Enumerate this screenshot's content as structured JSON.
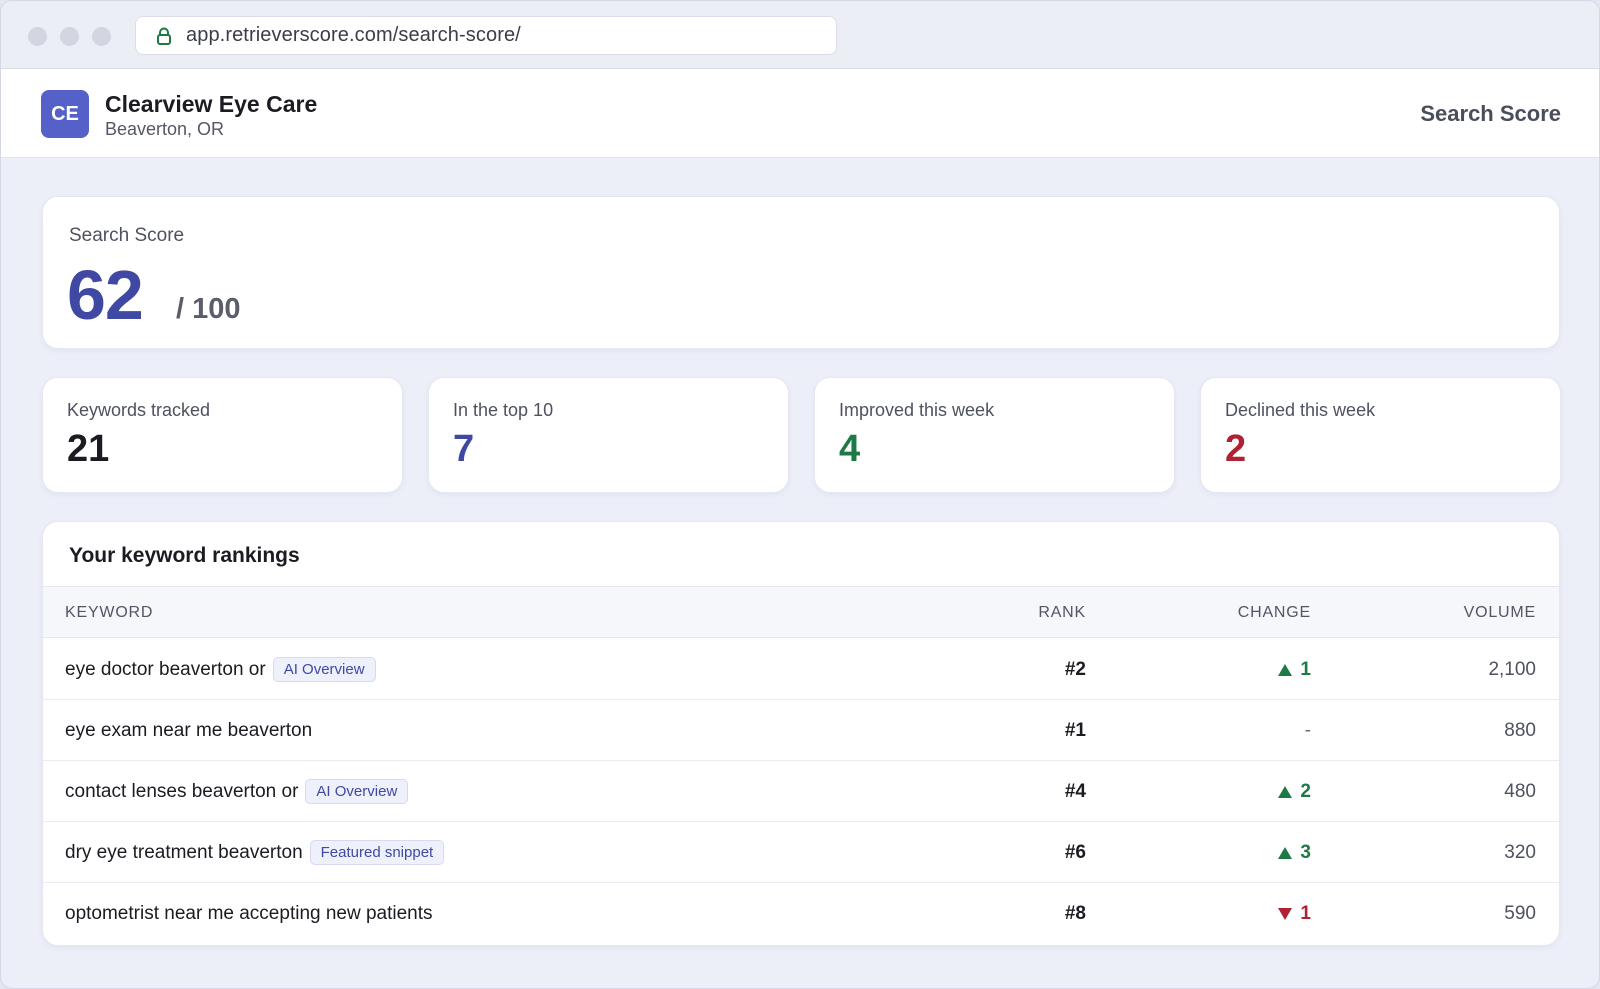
{
  "browser": {
    "url": "app.retrieverscore.com/search-score/"
  },
  "header": {
    "avatar_initials": "CE",
    "business_name": "Clearview Eye Care",
    "business_location": "Beaverton, OR",
    "page_title": "Search Score"
  },
  "score": {
    "label": "Search Score",
    "value": "62",
    "max": "/ 100"
  },
  "stats": [
    {
      "label": "Keywords tracked",
      "value": "21",
      "color": "#1b1c22"
    },
    {
      "label": "In the top 10",
      "value": "7",
      "color": "#3f49a3"
    },
    {
      "label": "Improved this week",
      "value": "4",
      "color": "#1e7a45"
    },
    {
      "label": "Declined this week",
      "value": "2",
      "color": "#b02233"
    }
  ],
  "rankings": {
    "title": "Your keyword rankings",
    "columns": {
      "keyword": "KEYWORD",
      "rank": "RANK",
      "change": "CHANGE",
      "volume": "VOLUME"
    },
    "rows": [
      {
        "keyword": "eye doctor beaverton or",
        "badge": "AI Overview",
        "rank": "#2",
        "direction": "up",
        "change": "1",
        "volume": "2,100"
      },
      {
        "keyword": "eye exam near me beaverton",
        "badge": "",
        "rank": "#1",
        "direction": "none",
        "change": "-",
        "volume": "880"
      },
      {
        "keyword": "contact lenses beaverton or",
        "badge": "AI Overview",
        "rank": "#4",
        "direction": "up",
        "change": "2",
        "volume": "480"
      },
      {
        "keyword": "dry eye treatment beaverton",
        "badge": "Featured snippet",
        "rank": "#6",
        "direction": "up",
        "change": "3",
        "volume": "320"
      },
      {
        "keyword": "optometrist near me accepting new patients",
        "badge": "",
        "rank": "#8",
        "direction": "down",
        "change": "1",
        "volume": "590"
      }
    ]
  },
  "colors": {
    "accent": "#3f49a3",
    "up": "#1e7a45",
    "down": "#b02233",
    "neutral": "#6b6e7a"
  }
}
